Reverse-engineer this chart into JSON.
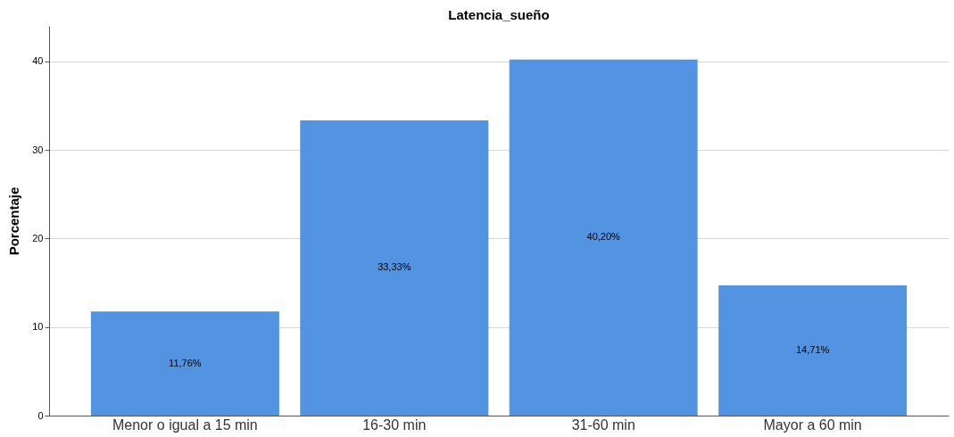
{
  "chart_data": {
    "type": "bar",
    "title": "Latencia_sueño",
    "ylabel": "Porcentaje",
    "categories": [
      "Menor o igual a 15 min",
      "16-30 min",
      "31-60 min",
      "Mayor a 60 min"
    ],
    "values": [
      11.76,
      33.33,
      40.2,
      14.71
    ],
    "value_labels": [
      "11,76%",
      "33,33%",
      "40,20%",
      "14,71%"
    ],
    "color": "#5294e2",
    "ylim": [
      0,
      44
    ],
    "yticks": [
      0,
      10,
      20,
      30,
      40
    ],
    "grid": "y"
  }
}
